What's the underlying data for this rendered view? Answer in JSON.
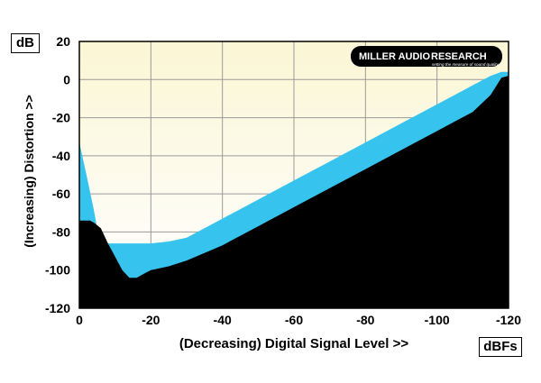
{
  "chart_data": {
    "type": "area",
    "y_unit": "dB",
    "x_unit": "dBFs",
    "ylabel": "(Increasing) Distortion >>",
    "xlabel": "(Decreasing) Digital Signal Level >>",
    "xlim": [
      0,
      -120
    ],
    "ylim": [
      -120,
      20
    ],
    "x_ticks": [
      "0",
      "-20",
      "-40",
      "-60",
      "-80",
      "-100",
      "-120"
    ],
    "y_ticks": [
      "20",
      "0",
      "-20",
      "-40",
      "-60",
      "-80",
      "-100",
      "-120"
    ],
    "grid": true,
    "series": [
      {
        "color": "#36c4ee",
        "x": [
          0,
          -2,
          -4,
          -5,
          -6,
          -7,
          -8,
          -9,
          -10,
          -20,
          -25,
          -30,
          -40,
          -50,
          -60,
          -70,
          -80,
          -90,
          -100,
          -105,
          -110,
          -115,
          -118,
          -120
        ],
        "values": [
          -33,
          -50,
          -68,
          -78,
          -86,
          -86,
          -86,
          -86,
          -86,
          -86,
          -85,
          -83,
          -73,
          -63,
          -53,
          -43,
          -33,
          -23,
          -13,
          -8,
          -3,
          2,
          4,
          4
        ]
      },
      {
        "color": "#000000",
        "x": [
          0,
          -1,
          -3,
          -4,
          -6,
          -8,
          -10,
          -12,
          -14,
          -16,
          -18,
          -20,
          -25,
          -30,
          -40,
          -50,
          -60,
          -70,
          -80,
          -90,
          -100,
          -105,
          -110,
          -115,
          -118,
          -120
        ],
        "values": [
          -74,
          -74,
          -74,
          -75,
          -78,
          -86,
          -93,
          -100,
          -104,
          -104,
          -102,
          -100,
          -98,
          -95,
          -87,
          -77,
          -67,
          -57,
          -47,
          -37,
          -27,
          -22,
          -17,
          -8,
          1,
          2
        ]
      }
    ]
  },
  "logo": {
    "text_left": "MILLER AUDIO",
    "text_right": "RESEARCH",
    "tagline": "setting the measure of sound quality"
  }
}
